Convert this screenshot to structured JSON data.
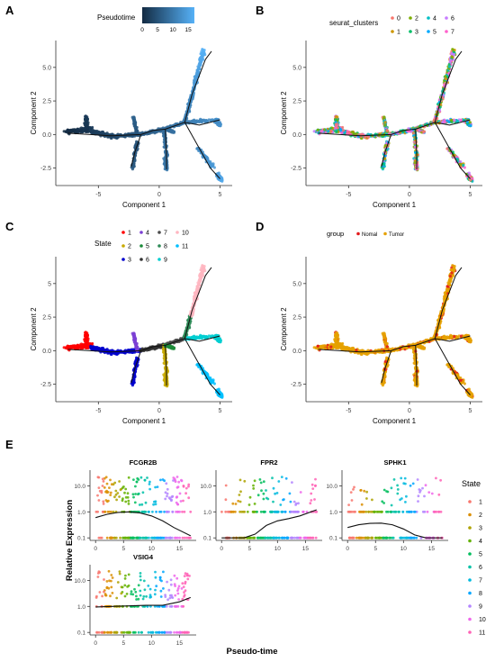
{
  "panels": [
    {
      "label": "A",
      "xlabel": "Component 1",
      "ylabel": "Component 2",
      "legend_title": "Pseudotime",
      "legend_ticks": [
        "0",
        "5",
        "10",
        "15"
      ],
      "xticks": [
        "-5",
        "0",
        "5"
      ],
      "yticks": [
        "5.0",
        "2.5",
        "0.0",
        "-2.5"
      ],
      "color_mode": "pseudotime"
    },
    {
      "label": "B",
      "xlabel": "Component 1",
      "ylabel": "Component 2",
      "legend_title": "seurat_clusters",
      "legend_items": [
        "0",
        "2",
        "4",
        "6",
        "1",
        "3",
        "5",
        "7"
      ],
      "xticks": [
        "-5",
        "0",
        "5"
      ],
      "yticks": [
        "5.0",
        "2.5",
        "0.0",
        "-2.5"
      ],
      "color_mode": "cluster"
    },
    {
      "label": "C",
      "xlabel": "Component 1",
      "ylabel": "Component 2",
      "legend_title": "State",
      "legend_items": [
        "1",
        "4",
        "7",
        "10",
        "2",
        "5",
        "8",
        "11",
        "3",
        "6",
        "9"
      ],
      "xticks": [
        "-5",
        "0",
        "5"
      ],
      "yticks": [
        "5",
        "2.5",
        "0.0",
        "-2.5"
      ],
      "color_mode": "state"
    },
    {
      "label": "D",
      "xlabel": "Component 1",
      "ylabel": "Component 2",
      "legend_title": "group",
      "legend_items": [
        "Nomal",
        "Tumor"
      ],
      "xticks": [
        "-5",
        "0",
        "5"
      ],
      "yticks": [
        "5.0",
        "2.5",
        "0.0",
        "-2.5"
      ],
      "color_mode": "group"
    }
  ],
  "panel_e": {
    "label": "E",
    "ylabel": "Relative Expression",
    "xlabel": "Pseudo-time",
    "legend_title": "State",
    "legend_items": [
      "1",
      "2",
      "3",
      "4",
      "5",
      "6",
      "7",
      "8",
      "9",
      "10",
      "11"
    ],
    "genes": [
      {
        "name": "FCGR2B",
        "xticks": [
          "0",
          "5",
          "10",
          "15"
        ],
        "yticks": [
          "10.0",
          "1.0",
          "0.1"
        ]
      },
      {
        "name": "FPR2",
        "xticks": [
          "0",
          "5",
          "10",
          "15"
        ],
        "yticks": [
          "10.0",
          "1.0",
          "0.1"
        ]
      },
      {
        "name": "SPHK1",
        "xticks": [
          "0",
          "5",
          "10",
          "15"
        ],
        "yticks": [
          "10.0",
          "1.0",
          "0.1"
        ]
      },
      {
        "name": "VSIG4",
        "xticks": [
          "0",
          "5",
          "10",
          "15"
        ],
        "yticks": [
          "10.0",
          "1.0",
          "0.1"
        ]
      }
    ]
  },
  "chart_data": [
    {
      "type": "scatter",
      "panel": "A",
      "xlabel": "Component 1",
      "ylabel": "Component 2",
      "xlim": [
        -8.5,
        6
      ],
      "ylim": [
        -3.8,
        7
      ],
      "color_by": "Pseudotime",
      "color_range": [
        0,
        17
      ],
      "trajectory": [
        [
          -7.5,
          0.1
        ],
        [
          -4,
          -0.1
        ],
        [
          -1.5,
          0
        ],
        [
          -0.5,
          0.3
        ],
        [
          0.5,
          0.4
        ],
        [
          2.1,
          0.9
        ],
        [
          2.7,
          3
        ],
        [
          3.8,
          5.6
        ],
        [
          4.3,
          6.2
        ]
      ],
      "trajectory_branches": [
        [
          [
            2.1,
            0.9
          ],
          [
            3.3,
            0.7
          ],
          [
            5,
            1.1
          ]
        ],
        [
          [
            0.5,
            0.4
          ],
          [
            0.6,
            -1.5
          ],
          [
            0.6,
            -2.6
          ]
        ],
        [
          [
            -1.5,
            0
          ],
          [
            -2,
            -1.3
          ],
          [
            -2.3,
            -2.4
          ]
        ],
        [
          [
            2.1,
            0.9
          ],
          [
            3.4,
            -1.2
          ],
          [
            4.2,
            -2.5
          ],
          [
            5,
            -3.3
          ]
        ]
      ]
    },
    {
      "type": "scatter",
      "panel": "B",
      "xlabel": "Component 1",
      "ylabel": "Component 2",
      "legend": [
        "0",
        "1",
        "2",
        "3",
        "4",
        "5",
        "6",
        "7"
      ],
      "xlim": [
        -8.5,
        6
      ],
      "ylim": [
        -3.8,
        7
      ]
    },
    {
      "type": "scatter",
      "panel": "C",
      "xlabel": "Component 1",
      "ylabel": "Component 2",
      "legend": [
        "1",
        "2",
        "3",
        "4",
        "5",
        "6",
        "7",
        "8",
        "9",
        "10",
        "11"
      ],
      "xlim": [
        -8.5,
        6
      ],
      "ylim": [
        -3.8,
        7
      ]
    },
    {
      "type": "scatter",
      "panel": "D",
      "xlabel": "Component 1",
      "ylabel": "Component 2",
      "legend": [
        "Nomal",
        "Tumor"
      ],
      "xlim": [
        -8.5,
        6
      ],
      "ylim": [
        -3.8,
        7
      ]
    },
    {
      "type": "scatter",
      "panel": "E",
      "xlabel": "Pseudo-time",
      "ylabel": "Relative Expression",
      "y_scale": "log10",
      "ylim": [
        0.08,
        40
      ],
      "xlim": [
        -1,
        18
      ],
      "genes": [
        "FCGR2B",
        "FPR2",
        "SPHK1",
        "VSIG4"
      ],
      "smooth_curves": {
        "FCGR2B": {
          "x": [
            0,
            2,
            4,
            6,
            8,
            10,
            12,
            14,
            17
          ],
          "y": [
            0.6,
            0.8,
            0.95,
            1.0,
            0.9,
            0.7,
            0.45,
            0.25,
            0.12
          ]
        },
        "FPR2": {
          "x": [
            0,
            4,
            6,
            8,
            10,
            12,
            14,
            17
          ],
          "y": [
            0.1,
            0.1,
            0.14,
            0.3,
            0.45,
            0.55,
            0.7,
            1.2
          ]
        },
        "SPHK1": {
          "x": [
            0,
            2,
            4,
            6,
            8,
            10,
            12,
            14,
            17
          ],
          "y": [
            0.25,
            0.32,
            0.36,
            0.37,
            0.32,
            0.22,
            0.13,
            0.1,
            0.1
          ]
        },
        "VSIG4": {
          "x": [
            0,
            3,
            6,
            9,
            12,
            15,
            17
          ],
          "y": [
            0.95,
            1.0,
            1.05,
            1.1,
            1.1,
            1.5,
            2.2
          ]
        }
      }
    }
  ],
  "colors": {
    "state": [
      "#F8766D",
      "#DB8E00",
      "#AEA200",
      "#64B200",
      "#00BD5C",
      "#00C1A7",
      "#00BADE",
      "#00A6FF",
      "#B385FF",
      "#EF67EB",
      "#FF63B6"
    ],
    "state_c": [
      "#FF0000",
      "#C8AA00",
      "#0000CD",
      "#7B3FD3",
      "#1C8B3A",
      "#333333",
      "#4B4B4B",
      "#2E8B57",
      "#00CED1",
      "#FFB6C1",
      "#00BFFF"
    ],
    "cluster": [
      "#F8766D",
      "#CD9600",
      "#7CAE00",
      "#00BE67",
      "#00BFC4",
      "#00A9FF",
      "#C77CFF",
      "#FF61CC"
    ],
    "group": [
      "#E31A1C",
      "#E5A100"
    ],
    "pseudotime_low": "#132B43",
    "pseudotime_high": "#56B1F7"
  }
}
